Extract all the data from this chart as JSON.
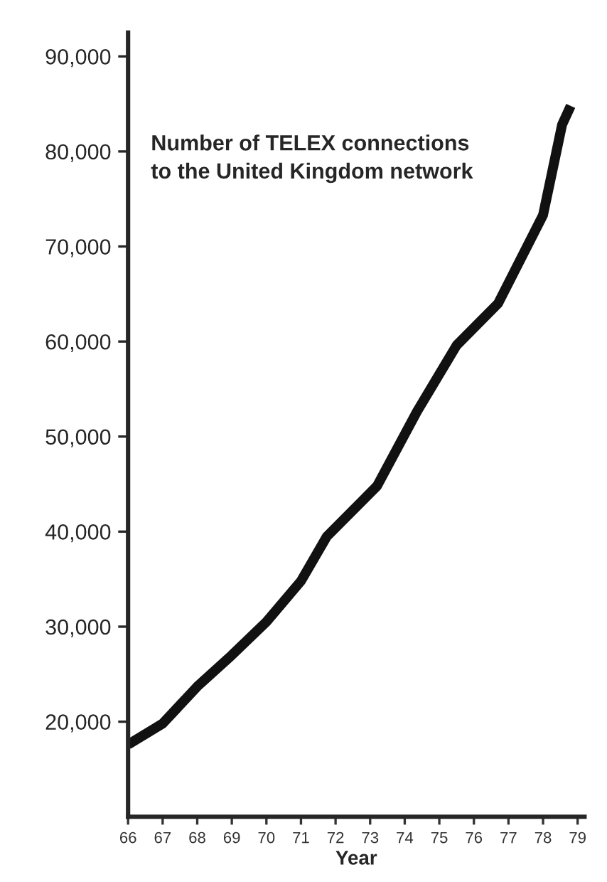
{
  "chart_data": {
    "type": "line",
    "title": "Number of TELEX connections\nto the United Kingdom network",
    "xlabel": "Year",
    "x": [
      66,
      67,
      68,
      69,
      70,
      71,
      71.75,
      73.2,
      74.35,
      75.5,
      76.7,
      78.0,
      78.55,
      78.8
    ],
    "series": [
      {
        "color": "#111111",
        "values": [
          17600,
          19800,
          23700,
          27000,
          30500,
          34800,
          39500,
          44800,
          52600,
          59600,
          64000,
          73300,
          82800,
          84800
        ]
      }
    ],
    "xlim": [
      66,
      79.2
    ],
    "xticks": [
      66,
      67,
      68,
      69,
      70,
      71,
      72,
      73,
      74,
      75,
      76,
      77,
      78,
      79
    ],
    "ylim": [
      10000,
      92500
    ],
    "yticks": [
      {
        "value": 20000,
        "label": "20,000"
      },
      {
        "value": 30000,
        "label": "30,000"
      },
      {
        "value": 40000,
        "label": "40,000"
      },
      {
        "value": 50000,
        "label": "50,000"
      },
      {
        "value": 60000,
        "label": "60,000"
      },
      {
        "value": 70000,
        "label": "70,000"
      },
      {
        "value": 80000,
        "label": "80,000"
      },
      {
        "value": 90000,
        "label": "90,000"
      }
    ],
    "grid": false,
    "marker": "none",
    "line_style": "solid"
  }
}
